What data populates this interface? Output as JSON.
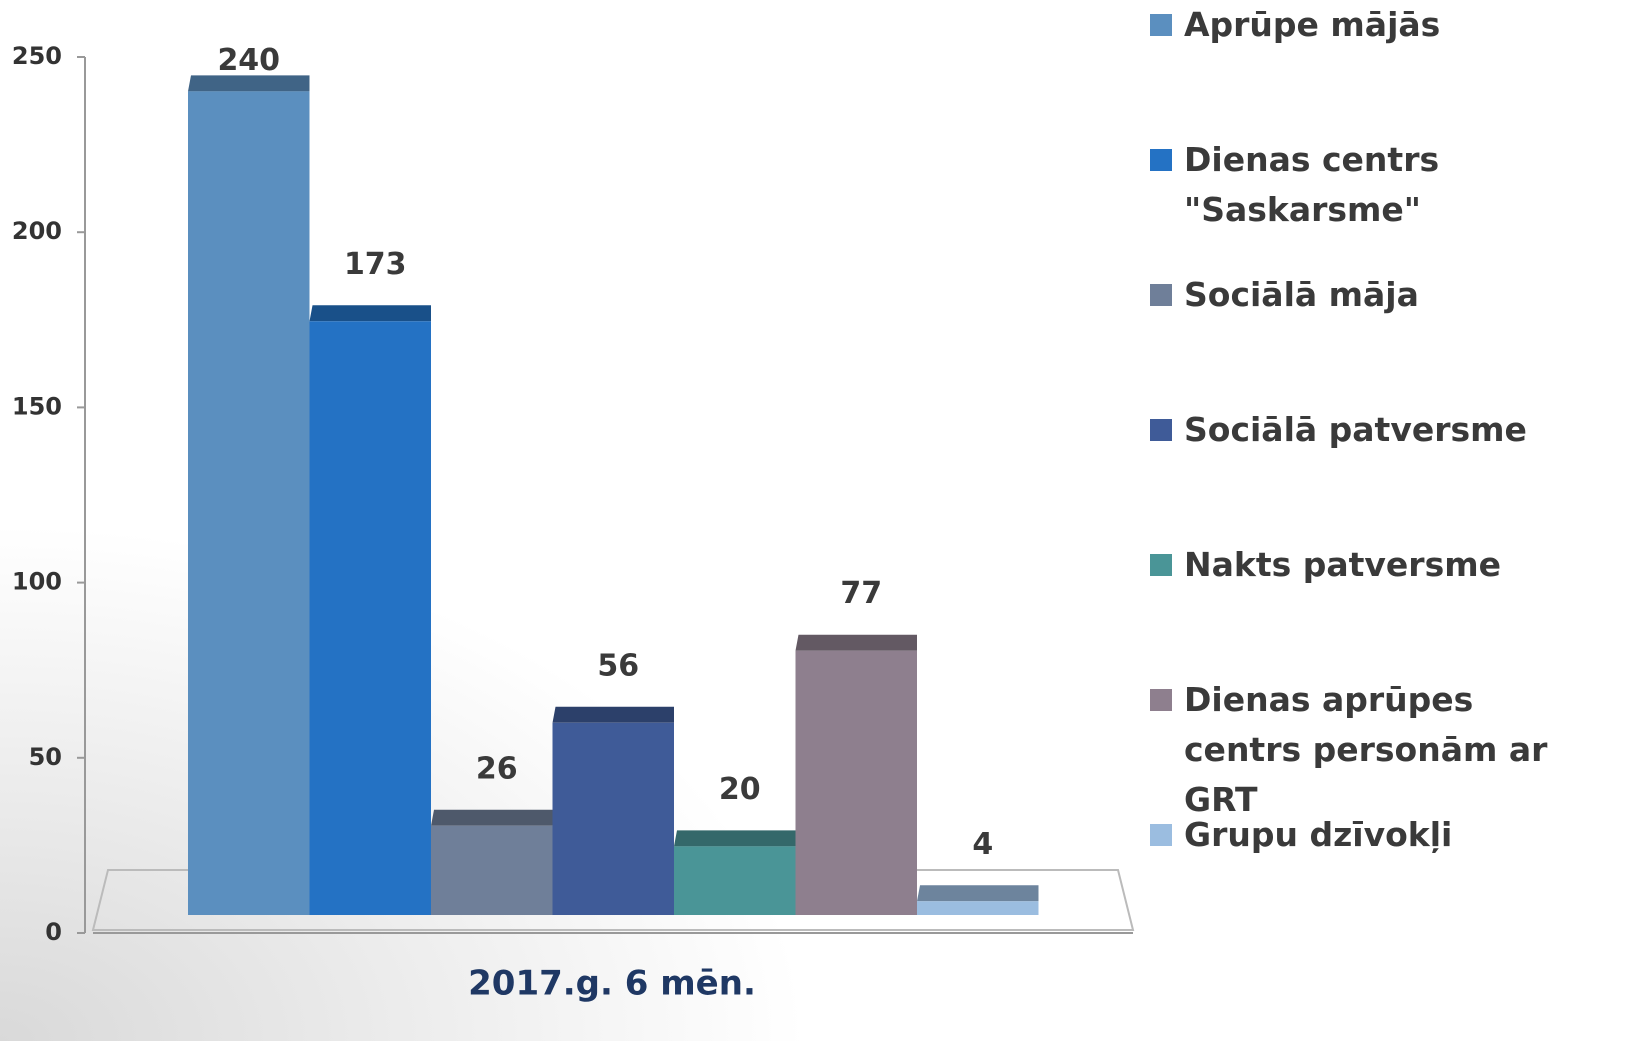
{
  "chart_data": {
    "type": "bar",
    "categories": [
      "2017.g. 6 mēn."
    ],
    "series": [
      {
        "name": "Aprūpe mājās",
        "color": "#5b8fbf",
        "values": [
          240
        ]
      },
      {
        "name": "Dienas centrs \"Saskarsme\"",
        "color": "#2472c4",
        "values": [
          173
        ]
      },
      {
        "name": "Sociālā māja",
        "color": "#6f7f99",
        "values": [
          26
        ]
      },
      {
        "name": "Sociālā patversme",
        "color": "#3f5b98",
        "values": [
          56
        ]
      },
      {
        "name": "Nakts patversme",
        "color": "#4a9597",
        "values": [
          20
        ]
      },
      {
        "name": "Dienas aprūpes centrs personām ar GRT",
        "color": "#8e7f8e",
        "values": [
          77
        ]
      },
      {
        "name": "Grupu dzīvokļi",
        "color": "#9bbde0",
        "values": [
          4
        ]
      }
    ],
    "ylim": [
      0,
      250
    ],
    "yticks": [
      0,
      50,
      100,
      150,
      200,
      250
    ],
    "legend": "right"
  }
}
